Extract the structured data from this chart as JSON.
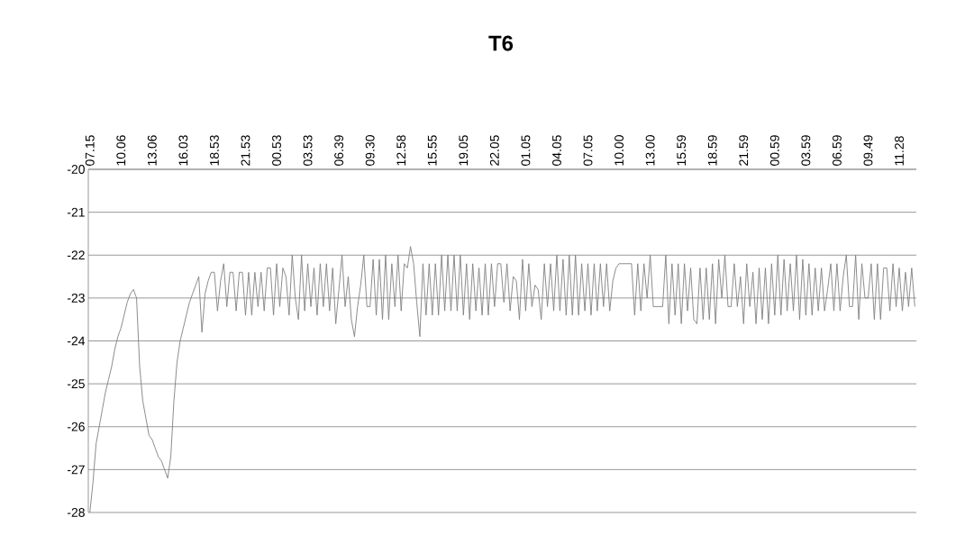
{
  "chart_data": {
    "type": "line",
    "title": "T6",
    "categories": [
      "07.15",
      null,
      null,
      null,
      null,
      null,
      null,
      null,
      null,
      null,
      "10.06",
      null,
      null,
      null,
      null,
      null,
      null,
      null,
      null,
      null,
      "13.06",
      null,
      null,
      null,
      null,
      null,
      null,
      null,
      null,
      null,
      "16.03",
      null,
      null,
      null,
      null,
      null,
      null,
      null,
      null,
      null,
      "18.53",
      null,
      null,
      null,
      null,
      null,
      null,
      null,
      null,
      null,
      "21.53",
      null,
      null,
      null,
      null,
      null,
      null,
      null,
      null,
      null,
      "00.53",
      null,
      null,
      null,
      null,
      null,
      null,
      null,
      null,
      null,
      "03.53",
      null,
      null,
      null,
      null,
      null,
      null,
      null,
      null,
      null,
      "06.39",
      null,
      null,
      null,
      null,
      null,
      null,
      null,
      null,
      null,
      "09.30",
      null,
      null,
      null,
      null,
      null,
      null,
      null,
      null,
      null,
      "12.58",
      null,
      null,
      null,
      null,
      null,
      null,
      null,
      null,
      null,
      "15.55",
      null,
      null,
      null,
      null,
      null,
      null,
      null,
      null,
      null,
      "19.05",
      null,
      null,
      null,
      null,
      null,
      null,
      null,
      null,
      null,
      "22.05",
      null,
      null,
      null,
      null,
      null,
      null,
      null,
      null,
      null,
      "01.05",
      null,
      null,
      null,
      null,
      null,
      null,
      null,
      null,
      null,
      "04.05",
      null,
      null,
      null,
      null,
      null,
      null,
      null,
      null,
      null,
      "07.05",
      null,
      null,
      null,
      null,
      null,
      null,
      null,
      null,
      null,
      "10.00",
      null,
      null,
      null,
      null,
      null,
      null,
      null,
      null,
      null,
      "13.00",
      null,
      null,
      null,
      null,
      null,
      null,
      null,
      null,
      null,
      "15.59",
      null,
      null,
      null,
      null,
      null,
      null,
      null,
      null,
      null,
      "18.59",
      null,
      null,
      null,
      null,
      null,
      null,
      null,
      null,
      null,
      "21.59",
      null,
      null,
      null,
      null,
      null,
      null,
      null,
      null,
      null,
      "00.59",
      null,
      null,
      null,
      null,
      null,
      null,
      null,
      null,
      null,
      "03.59",
      null,
      null,
      null,
      null,
      null,
      null,
      null,
      null,
      null,
      "06.59",
      null,
      null,
      null,
      null,
      null,
      null,
      null,
      null,
      null,
      "09.49",
      null,
      null,
      null,
      null,
      null,
      null,
      null,
      null,
      null,
      "11.28",
      null,
      null,
      null,
      null,
      null
    ],
    "series": [
      {
        "color": "#808080",
        "values": [
          -28.0,
          -27.3,
          -26.4,
          -26.0,
          -25.6,
          -25.2,
          -24.9,
          -24.6,
          -24.2,
          -23.9,
          -23.7,
          -23.4,
          -23.1,
          -22.9,
          -22.8,
          -23.0,
          -24.6,
          -25.4,
          -25.8,
          -26.2,
          -26.3,
          -26.5,
          -26.7,
          -26.8,
          -27.0,
          -27.2,
          -26.7,
          -25.4,
          -24.5,
          -24.0,
          -23.7,
          -23.4,
          -23.1,
          -22.9,
          -22.7,
          -22.5,
          -23.8,
          -22.9,
          -22.6,
          -22.4,
          -22.4,
          -23.3,
          -22.6,
          -22.2,
          -23.2,
          -22.4,
          -22.4,
          -23.3,
          -22.4,
          -22.4,
          -23.4,
          -22.4,
          -23.4,
          -22.4,
          -23.2,
          -22.4,
          -23.3,
          -22.3,
          -22.3,
          -23.4,
          -22.2,
          -23.2,
          -22.3,
          -22.5,
          -23.4,
          -22.0,
          -23.0,
          -23.5,
          -22.0,
          -23.3,
          -22.2,
          -23.2,
          -22.3,
          -23.4,
          -22.2,
          -23.2,
          -22.2,
          -23.3,
          -22.3,
          -23.6,
          -22.8,
          -22.0,
          -23.2,
          -22.5,
          -23.5,
          -23.9,
          -23.2,
          -22.7,
          -22.0,
          -23.2,
          -23.2,
          -22.1,
          -23.4,
          -22.1,
          -23.5,
          -22.0,
          -23.5,
          -22.2,
          -23.2,
          -22.0,
          -23.3,
          -22.2,
          -22.3,
          -21.8,
          -22.2,
          -23.1,
          -23.9,
          -22.2,
          -23.4,
          -22.2,
          -23.4,
          -22.2,
          -23.4,
          -22.0,
          -23.3,
          -22.0,
          -23.3,
          -22.0,
          -23.3,
          -22.0,
          -23.4,
          -22.2,
          -23.5,
          -22.2,
          -23.3,
          -22.3,
          -23.4,
          -22.2,
          -23.4,
          -22.2,
          -23.2,
          -22.2,
          -22.2,
          -23.1,
          -22.2,
          -23.3,
          -22.5,
          -22.6,
          -23.5,
          -22.1,
          -23.3,
          -22.2,
          -23.2,
          -22.7,
          -22.8,
          -23.5,
          -22.2,
          -23.2,
          -22.2,
          -23.3,
          -22.0,
          -23.3,
          -22.1,
          -23.4,
          -22.0,
          -23.4,
          -22.0,
          -23.4,
          -22.2,
          -23.3,
          -22.2,
          -23.4,
          -22.2,
          -23.3,
          -22.2,
          -23.2,
          -22.2,
          -23.3,
          -22.6,
          -22.3,
          -22.2,
          -22.2,
          -22.2,
          -22.2,
          -22.2,
          -23.4,
          -22.2,
          -23.3,
          -22.2,
          -23.0,
          -22.0,
          -23.2,
          -23.2,
          -23.2,
          -23.2,
          -22.0,
          -23.6,
          -22.2,
          -23.4,
          -22.2,
          -23.6,
          -22.2,
          -23.3,
          -22.3,
          -23.5,
          -23.6,
          -22.3,
          -23.5,
          -22.3,
          -23.5,
          -22.2,
          -23.6,
          -22.1,
          -23.0,
          -22.0,
          -23.2,
          -23.2,
          -22.2,
          -23.2,
          -22.5,
          -23.6,
          -22.2,
          -23.2,
          -22.4,
          -23.6,
          -22.3,
          -23.5,
          -22.3,
          -23.6,
          -22.2,
          -23.4,
          -22.0,
          -23.4,
          -22.1,
          -23.3,
          -22.2,
          -23.3,
          -22.0,
          -23.5,
          -22.1,
          -23.4,
          -22.2,
          -23.4,
          -22.3,
          -23.3,
          -22.3,
          -23.3,
          -22.8,
          -22.2,
          -23.3,
          -22.2,
          -23.3,
          -22.5,
          -22.0,
          -23.2,
          -23.2,
          -22.0,
          -23.5,
          -22.2,
          -23.0,
          -23.0,
          -22.2,
          -23.5,
          -22.2,
          -23.5,
          -22.3,
          -22.3,
          -23.3,
          -22.2,
          -23.2,
          -22.3,
          -23.3,
          -22.4,
          -23.2,
          -22.3,
          -23.2
        ]
      }
    ],
    "ylim": [
      -28,
      -20
    ],
    "yticks": [
      -28,
      -27,
      -26,
      -25,
      -24,
      -23,
      -22,
      -21,
      -20
    ],
    "grid": "y"
  }
}
